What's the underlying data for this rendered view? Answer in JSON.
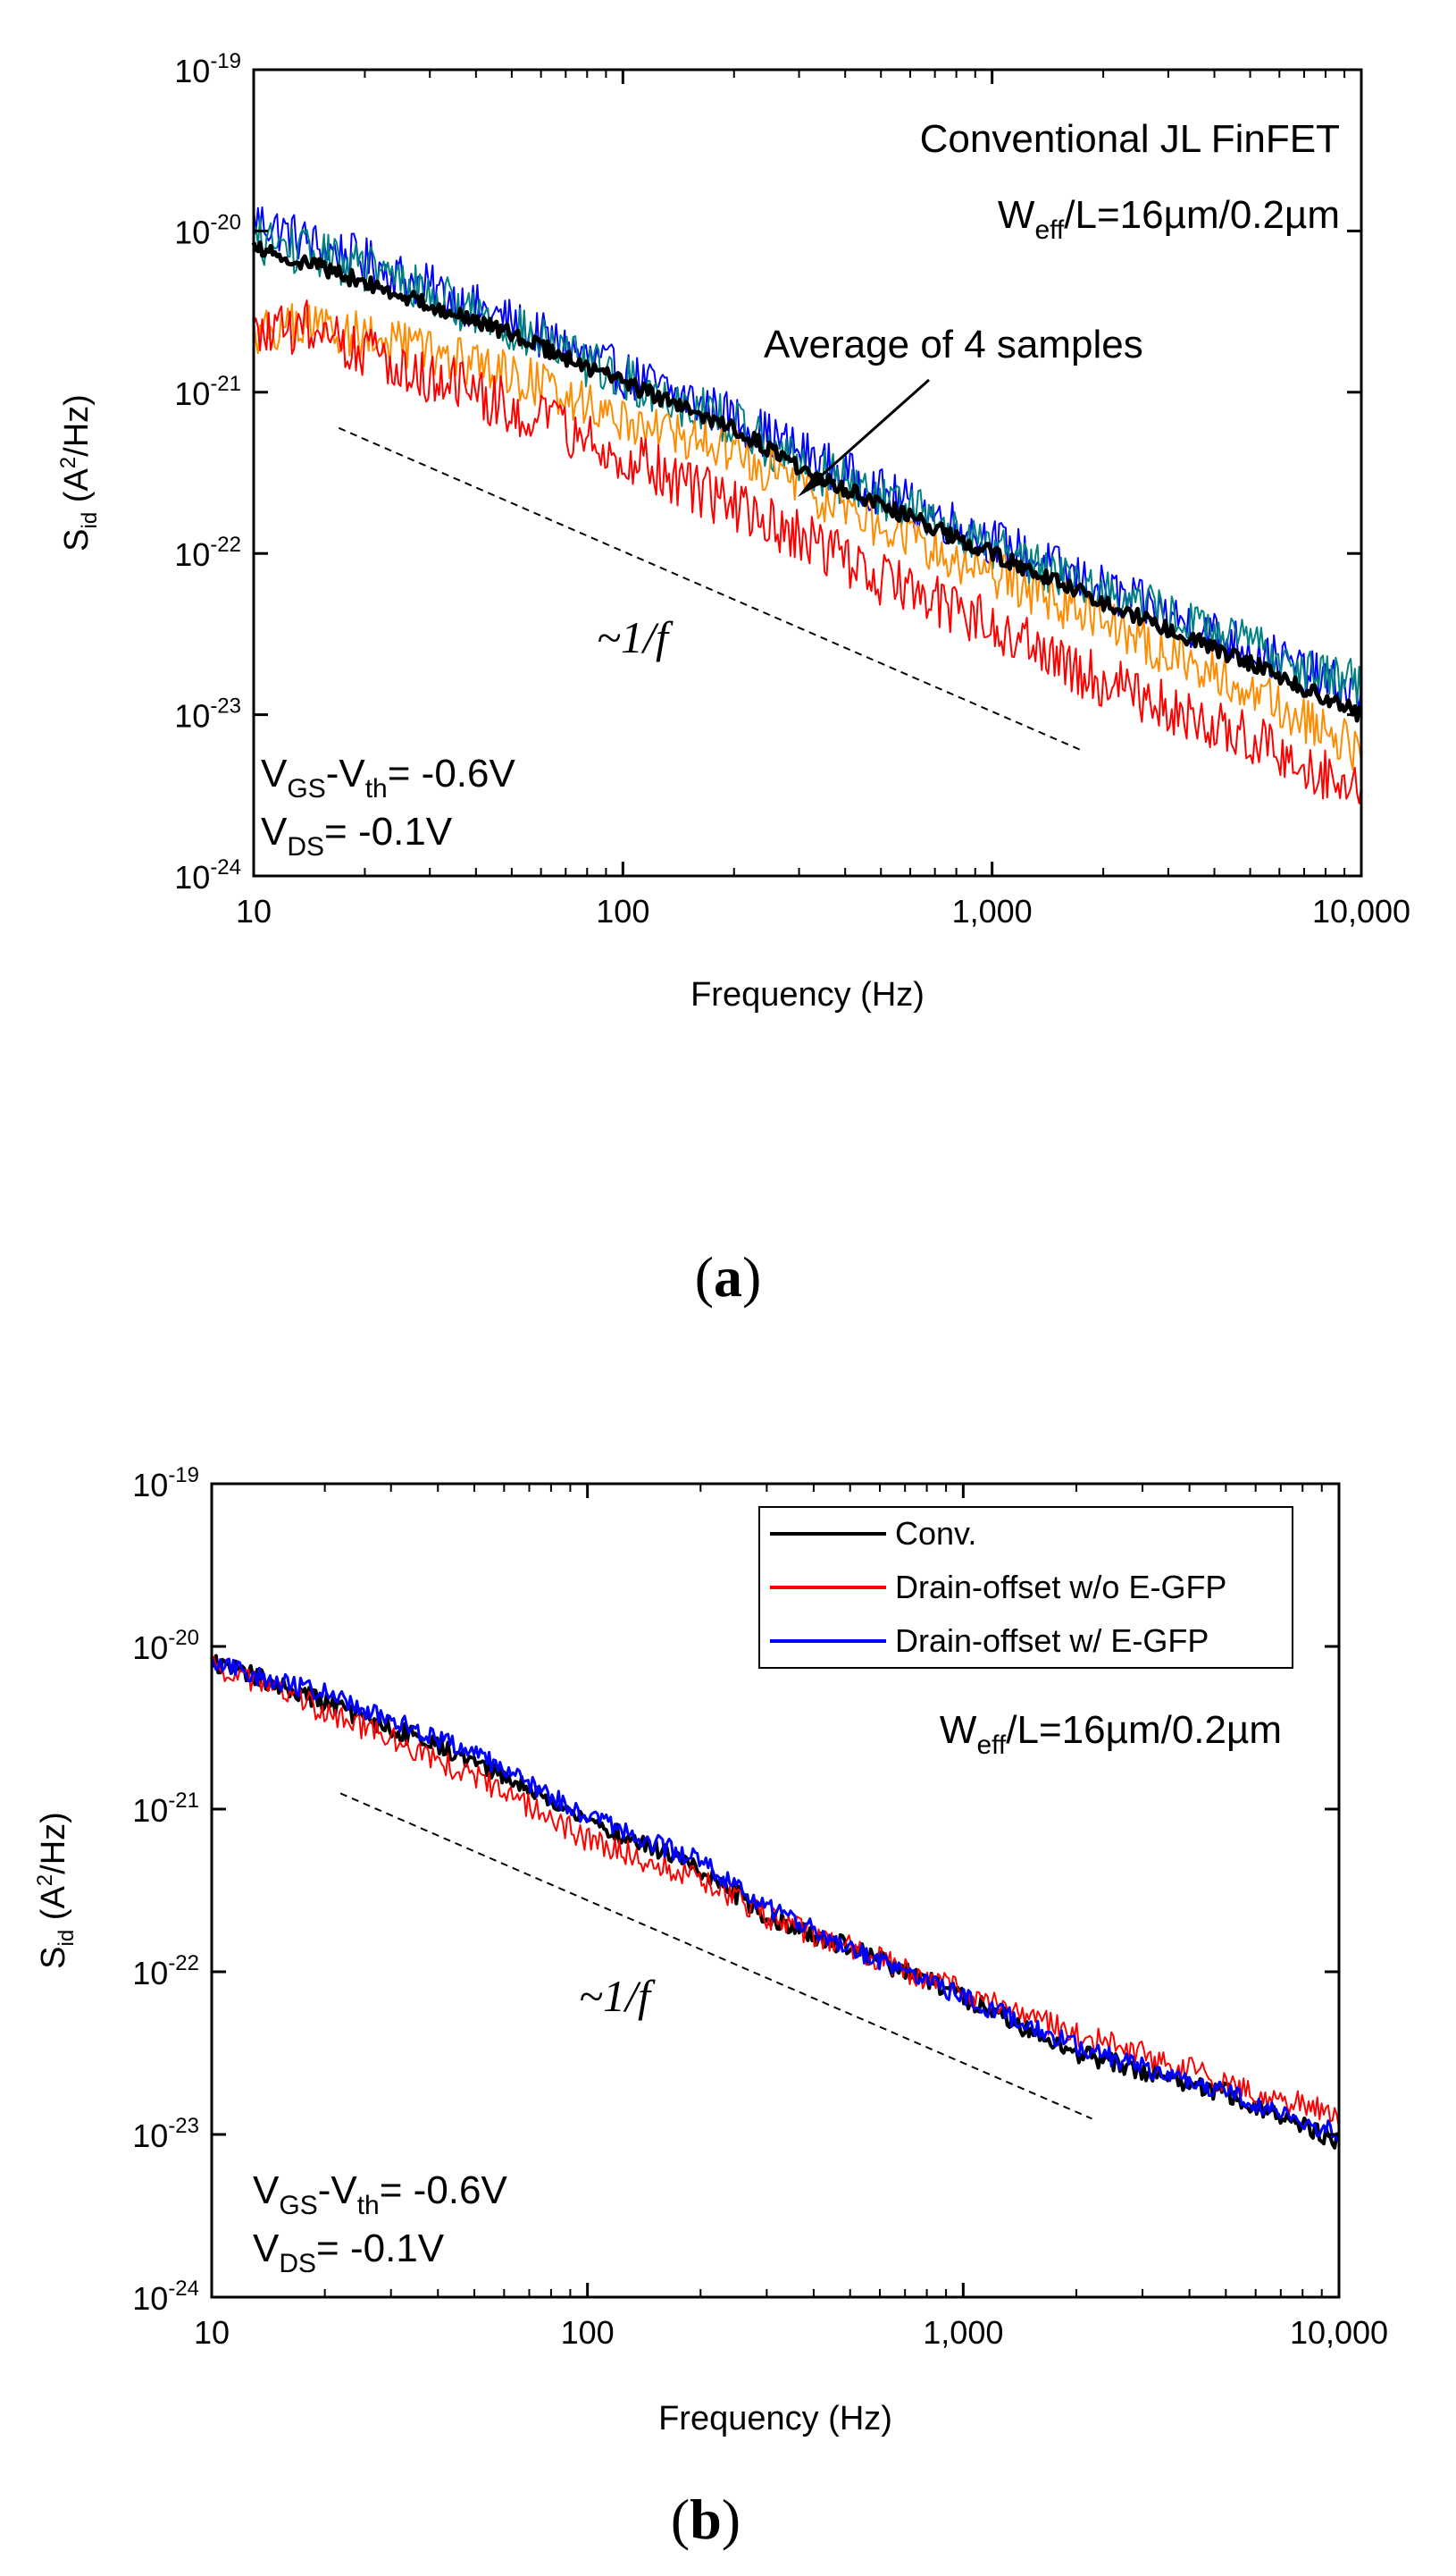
{
  "chart_data": [
    {
      "type": "line",
      "panel_label": "a",
      "xlabel": "Frequency (Hz)",
      "ylabel": {
        "main": "S",
        "sub": "id",
        "units_pre": " (A",
        "sup": "2",
        "units_post": "/Hz)"
      },
      "x_scale": "log",
      "y_scale": "log",
      "xlim": [
        10,
        10000
      ],
      "ylim": [
        1e-24,
        1e-19
      ],
      "x_tick_labels": [
        "10",
        "100",
        "1,000",
        "10,000"
      ],
      "y_tick_labels": [
        {
          "base": "10",
          "exp": "-19"
        },
        {
          "base": "10",
          "exp": "-20"
        },
        {
          "base": "10",
          "exp": "-21"
        },
        {
          "base": "10",
          "exp": "-22"
        },
        {
          "base": "10",
          "exp": "-23"
        },
        {
          "base": "10",
          "exp": "-24"
        }
      ],
      "annotations": {
        "device": "Conventional JL FinFET",
        "dimensions": {
          "pre": "W",
          "sub": "eff",
          "post": "/L=16µm/0.2µm"
        },
        "average_label": "Average of 4 samples",
        "bias_vgs": {
          "p1": "V",
          "s1": "GS",
          "p2": "-V",
          "s2": "th",
          "p3": "= -0.6V"
        },
        "bias_vds": {
          "p1": "V",
          "s1": "DS",
          "p2": "= -0.1V"
        },
        "slope": "~1/f"
      },
      "series": [
        {
          "color": "#0000ff",
          "points": [
            [
              10,
              1.2e-20
            ],
            [
              15,
              8e-21
            ],
            [
              20,
              6.5e-21
            ],
            [
              50,
              2.7e-21
            ],
            [
              100,
              1.3e-21
            ],
            [
              200,
              7e-22
            ],
            [
              300,
              4.3e-22
            ],
            [
              500,
              2.4e-22
            ],
            [
              1000,
              1.2e-22
            ],
            [
              2000,
              6e-23
            ],
            [
              5000,
              2.6e-23
            ],
            [
              10000,
              1.3e-23
            ]
          ]
        },
        {
          "color": "#008080",
          "points": [
            [
              10,
              9e-21
            ],
            [
              15,
              7e-21
            ],
            [
              20,
              6e-21
            ],
            [
              50,
              2.5e-21
            ],
            [
              100,
              1.2e-21
            ],
            [
              200,
              6.5e-22
            ],
            [
              300,
              3.6e-22
            ],
            [
              500,
              2.3e-22
            ],
            [
              1000,
              1.1e-22
            ],
            [
              2000,
              6e-23
            ],
            [
              5000,
              2.7e-23
            ],
            [
              10000,
              1.5e-23
            ]
          ]
        },
        {
          "color": "#ff8c00",
          "points": [
            [
              10,
              2.4e-21
            ],
            [
              15,
              2.6e-21
            ],
            [
              20,
              2.2e-21
            ],
            [
              50,
              1.3e-21
            ],
            [
              100,
              7e-22
            ],
            [
              200,
              4.2e-22
            ],
            [
              300,
              2.6e-22
            ],
            [
              500,
              1.5e-22
            ],
            [
              1000,
              7.5e-23
            ],
            [
              2000,
              3.8e-23
            ],
            [
              5000,
              1.4e-23
            ],
            [
              10000,
              6e-24
            ]
          ]
        },
        {
          "color": "#ff0000",
          "points": [
            [
              10,
              2.2e-21
            ],
            [
              15,
              2.6e-21
            ],
            [
              20,
              1.8e-21
            ],
            [
              50,
              8e-22
            ],
            [
              100,
              4e-22
            ],
            [
              200,
              2e-22
            ],
            [
              300,
              1.3e-22
            ],
            [
              500,
              7e-23
            ],
            [
              1000,
              3.7e-23
            ],
            [
              2000,
              1.6e-23
            ],
            [
              5000,
              7e-24
            ],
            [
              10000,
              3.5e-24
            ]
          ]
        },
        {
          "color": "#000000",
          "points": [
            [
              10,
              8e-21
            ],
            [
              15,
              6e-21
            ],
            [
              20,
              4.8e-21
            ],
            [
              50,
              2.3e-21
            ],
            [
              100,
              1.15e-21
            ],
            [
              200,
              6e-22
            ],
            [
              300,
              3.4e-22
            ],
            [
              500,
              2e-22
            ],
            [
              1000,
              1e-22
            ],
            [
              2000,
              5e-23
            ],
            [
              5000,
              2.1e-23
            ],
            [
              10000,
              1e-23
            ]
          ]
        }
      ]
    },
    {
      "type": "line",
      "panel_label": "b",
      "xlabel": "Frequency (Hz)",
      "ylabel": {
        "main": "S",
        "sub": "id",
        "units_pre": " (A",
        "sup": "2",
        "units_post": "/Hz)"
      },
      "x_scale": "log",
      "y_scale": "log",
      "xlim": [
        10,
        10000
      ],
      "ylim": [
        1e-24,
        1e-19
      ],
      "x_tick_labels": [
        "10",
        "100",
        "1,000",
        "10,000"
      ],
      "y_tick_labels": [
        {
          "base": "10",
          "exp": "-19"
        },
        {
          "base": "10",
          "exp": "-20"
        },
        {
          "base": "10",
          "exp": "-21"
        },
        {
          "base": "10",
          "exp": "-22"
        },
        {
          "base": "10",
          "exp": "-23"
        },
        {
          "base": "10",
          "exp": "-24"
        }
      ],
      "annotations": {
        "dimensions": {
          "pre": "W",
          "sub": "eff",
          "post": "/L=16µm/0.2µm"
        },
        "bias_vgs": {
          "p1": "V",
          "s1": "GS",
          "p2": "-V",
          "s2": "th",
          "p3": "= -0.6V"
        },
        "bias_vds": {
          "p1": "V",
          "s1": "DS",
          "p2": "= -0.1V"
        },
        "slope": "~1/f"
      },
      "legend_position": "top-right",
      "series": [
        {
          "name": "Conv.",
          "color": "#000000",
          "points": [
            [
              10,
              8e-21
            ],
            [
              15,
              5.8e-21
            ],
            [
              20,
              4.5e-21
            ],
            [
              50,
              2e-21
            ],
            [
              100,
              8.5e-22
            ],
            [
              200,
              4.3e-22
            ],
            [
              300,
              2.2e-22
            ],
            [
              500,
              1.4e-22
            ],
            [
              1000,
              7e-23
            ],
            [
              2000,
              3.2e-23
            ],
            [
              5000,
              1.8e-23
            ],
            [
              10000,
              9e-24
            ]
          ]
        },
        {
          "name": "Drain-offset w/o E-GFP",
          "color": "#ff0000",
          "points": [
            [
              10,
              7.5e-21
            ],
            [
              15,
              5.5e-21
            ],
            [
              20,
              4e-21
            ],
            [
              50,
              1.6e-21
            ],
            [
              100,
              6.5e-22
            ],
            [
              200,
              3.7e-22
            ],
            [
              300,
              2.2e-22
            ],
            [
              500,
              1.4e-22
            ],
            [
              1000,
              7.5e-23
            ],
            [
              2000,
              4.2e-23
            ],
            [
              5000,
              2.1e-23
            ],
            [
              10000,
              1.3e-23
            ]
          ]
        },
        {
          "name": "Drain-offset w/ E-GFP",
          "color": "#0000ff",
          "points": [
            [
              10,
              8e-21
            ],
            [
              15,
              6e-21
            ],
            [
              20,
              5.2e-21
            ],
            [
              50,
              2.2e-21
            ],
            [
              100,
              9e-22
            ],
            [
              200,
              4.8e-22
            ],
            [
              300,
              2.5e-22
            ],
            [
              500,
              1.4e-22
            ],
            [
              1000,
              7e-23
            ],
            [
              2000,
              3.5e-23
            ],
            [
              5000,
              1.8e-23
            ],
            [
              10000,
              1e-23
            ]
          ]
        }
      ]
    }
  ]
}
